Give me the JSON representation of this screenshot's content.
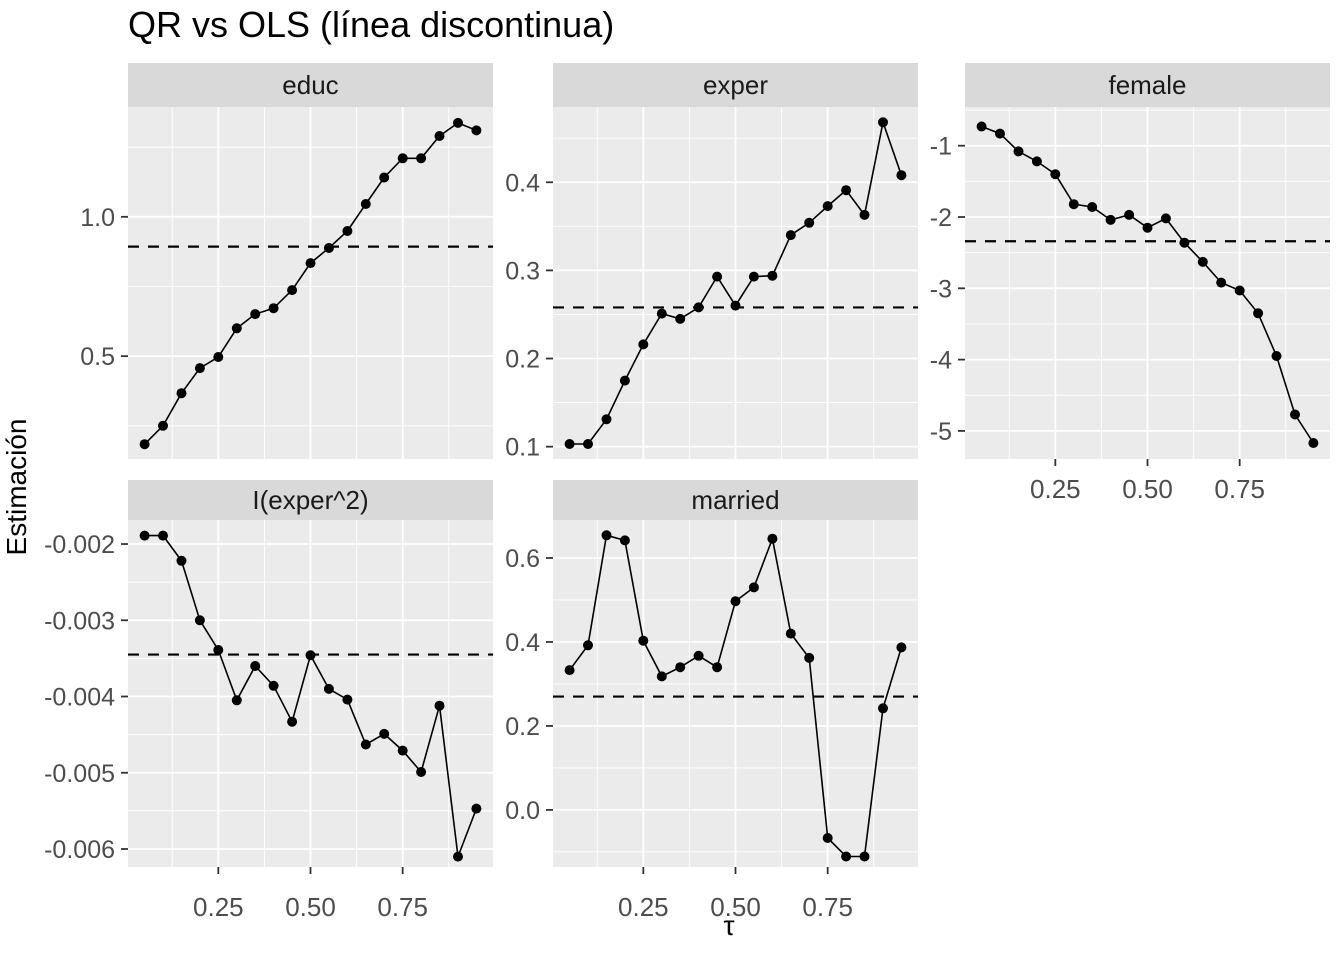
{
  "header": {
    "title": "QR vs OLS (línea discontinua)"
  },
  "axes": {
    "x_label": "τ",
    "y_label": "Estimación"
  },
  "style": {
    "panel_bg": "#EBEBEB",
    "strip_bg": "#D9D9D9",
    "grid_color": "#FFFFFF",
    "series_color": "#000000",
    "ols_line_color": "#000000",
    "tick_text_color": "#4D4D4D",
    "strip_text_color": "#1A1A1A",
    "tick_mark_color": "#333333",
    "title_color": "#000000"
  },
  "chart_data": {
    "type": "line",
    "title": "QR vs OLS (línea discontinua)",
    "xlabel": "τ",
    "ylabel": "Estimación",
    "legend": "none",
    "grid": "on",
    "x": [
      0.05,
      0.1,
      0.15,
      0.2,
      0.25,
      0.3,
      0.35,
      0.4,
      0.45,
      0.5,
      0.55,
      0.6,
      0.65,
      0.7,
      0.75,
      0.8,
      0.85,
      0.9,
      0.95
    ],
    "x_axis": {
      "lim": [
        0.005,
        0.995
      ],
      "ticks": [
        {
          "v": 0.25,
          "label": "0.25"
        },
        {
          "v": 0.5,
          "label": "0.50"
        },
        {
          "v": 0.75,
          "label": "0.75"
        }
      ],
      "minor": [
        0.125,
        0.375,
        0.625,
        0.875
      ]
    },
    "facets": [
      {
        "id": "educ",
        "title": "educ",
        "row": 0,
        "col": 0,
        "ylim": [
          0.131,
          1.394
        ],
        "yticks": [
          {
            "v": 0.5,
            "label": "0.5"
          },
          {
            "v": 1.0,
            "label": "1.0"
          }
        ],
        "yminor": [
          0.25,
          0.75,
          1.25
        ],
        "ols": 0.893,
        "values": [
          0.184,
          0.25,
          0.367,
          0.457,
          0.497,
          0.6,
          0.651,
          0.672,
          0.737,
          0.834,
          0.888,
          0.949,
          1.046,
          1.141,
          1.21,
          1.21,
          1.29,
          1.337,
          1.31
        ],
        "show_x_axis": false
      },
      {
        "id": "exper",
        "title": "exper",
        "row": 0,
        "col": 1,
        "ylim": [
          0.086,
          0.4854
        ],
        "yticks": [
          {
            "v": 0.1,
            "label": "0.1"
          },
          {
            "v": 0.2,
            "label": "0.2"
          },
          {
            "v": 0.3,
            "label": "0.3"
          },
          {
            "v": 0.4,
            "label": "0.4"
          }
        ],
        "yminor": [
          0.15,
          0.25,
          0.35,
          0.45
        ],
        "ols": 0.258,
        "values": [
          0.103,
          0.103,
          0.131,
          0.175,
          0.216,
          0.251,
          0.245,
          0.258,
          0.293,
          0.26,
          0.293,
          0.294,
          0.34,
          0.354,
          0.373,
          0.391,
          0.363,
          0.468,
          0.408
        ],
        "show_x_axis": false
      },
      {
        "id": "female",
        "title": "female",
        "row": 0,
        "col": 2,
        "ylim": [
          -5.394,
          -0.457
        ],
        "yticks": [
          {
            "v": -1,
            "label": "-1"
          },
          {
            "v": -2,
            "label": "-2"
          },
          {
            "v": -3,
            "label": "-3"
          },
          {
            "v": -4,
            "label": "-4"
          },
          {
            "v": -5,
            "label": "-5"
          }
        ],
        "yminor": [
          -0.5,
          -1.5,
          -2.5,
          -3.5,
          -4.5
        ],
        "ols": -2.34,
        "values": [
          -0.73,
          -0.83,
          -1.08,
          -1.22,
          -1.4,
          -1.82,
          -1.86,
          -2.04,
          -1.97,
          -2.15,
          -2.02,
          -2.36,
          -2.63,
          -2.92,
          -3.03,
          -3.35,
          -3.95,
          -4.77,
          -5.17
        ],
        "show_x_axis": true
      },
      {
        "id": "exper2",
        "title": "I(exper^2)",
        "row": 1,
        "col": 0,
        "ylim": [
          -0.006236,
          -0.001685
        ],
        "yticks": [
          {
            "v": -0.002,
            "label": "-0.002"
          },
          {
            "v": -0.003,
            "label": "-0.003"
          },
          {
            "v": -0.004,
            "label": "-0.004"
          },
          {
            "v": -0.005,
            "label": "-0.005"
          },
          {
            "v": -0.006,
            "label": "-0.006"
          }
        ],
        "yminor": [
          -0.0025,
          -0.0035,
          -0.0045,
          -0.0055
        ],
        "ols": -0.00345,
        "values": [
          -0.00189,
          -0.00189,
          -0.00222,
          -0.003,
          -0.00339,
          -0.00405,
          -0.0036,
          -0.00386,
          -0.00433,
          -0.00346,
          -0.0039,
          -0.00404,
          -0.00463,
          -0.00449,
          -0.00471,
          -0.00499,
          -0.00412,
          -0.0061,
          -0.00547
        ],
        "show_x_axis": true
      },
      {
        "id": "married",
        "title": "married",
        "row": 1,
        "col": 1,
        "ylim": [
          -0.136,
          0.6905
        ],
        "yticks": [
          {
            "v": 0.0,
            "label": "0.0"
          },
          {
            "v": 0.2,
            "label": "0.2"
          },
          {
            "v": 0.4,
            "label": "0.4"
          },
          {
            "v": 0.6,
            "label": "0.6"
          }
        ],
        "yminor": [
          -0.1,
          0.1,
          0.3,
          0.5
        ],
        "ols": 0.27,
        "values": [
          0.333,
          0.392,
          0.654,
          0.642,
          0.403,
          0.318,
          0.34,
          0.367,
          0.34,
          0.497,
          0.53,
          0.646,
          0.42,
          0.362,
          -0.067,
          -0.111,
          -0.111,
          0.242,
          0.387
        ],
        "show_x_axis": true
      }
    ]
  }
}
